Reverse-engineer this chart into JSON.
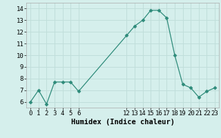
{
  "x": [
    0,
    1,
    2,
    3,
    4,
    5,
    6,
    12,
    13,
    14,
    15,
    16,
    17,
    18,
    19,
    20,
    21,
    22,
    23
  ],
  "y": [
    6.0,
    7.0,
    5.8,
    7.7,
    7.7,
    7.7,
    6.9,
    11.7,
    12.5,
    13.0,
    13.85,
    13.85,
    13.2,
    10.0,
    7.5,
    7.2,
    6.4,
    6.9,
    7.2
  ],
  "line_color": "#2e8b7a",
  "marker": "D",
  "marker_size": 2.5,
  "bg_color": "#d5efec",
  "grid_color": "#c0deda",
  "xlabel": "Humidex (Indice chaleur)",
  "ylim": [
    5.5,
    14.5
  ],
  "xlim": [
    -0.5,
    23.5
  ],
  "yticks": [
    6,
    7,
    8,
    9,
    10,
    11,
    12,
    13,
    14
  ],
  "xticks": [
    0,
    1,
    2,
    3,
    4,
    5,
    6,
    12,
    13,
    14,
    15,
    16,
    17,
    18,
    19,
    20,
    21,
    22,
    23
  ],
  "xlabel_fontsize": 7.5,
  "tick_fontsize": 6.5
}
